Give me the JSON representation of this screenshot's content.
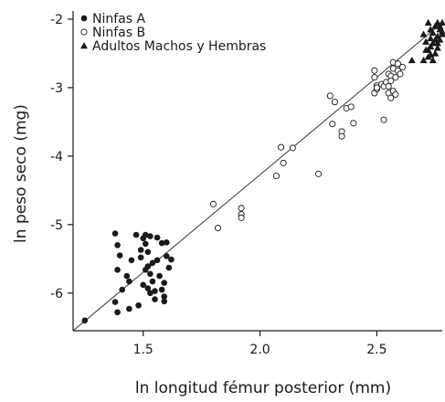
{
  "chart_data": {
    "type": "scatter",
    "title": "",
    "xlabel": "ln longitud fémur posterior (mm)",
    "ylabel": "ln peso seco (mg)",
    "xlim": [
      1.2,
      2.78
    ],
    "ylim": [
      -6.55,
      -1.88
    ],
    "xticks": [
      1.5,
      2.0,
      2.5
    ],
    "xtick_labels": [
      "1.5",
      "2.0",
      "2.5"
    ],
    "yticks": [
      -6,
      -5,
      -4,
      -3,
      -2
    ],
    "ytick_labels": [
      "-6",
      "-5",
      "-4",
      "-3",
      "-2"
    ],
    "grid": false,
    "legend_position": "top-left",
    "regression_line": {
      "x": [
        1.2,
        2.78
      ],
      "y": [
        -6.55,
        -2.05
      ]
    },
    "series": [
      {
        "name": "Ninfas A",
        "marker": "filled-circle",
        "x": [
          1.25,
          1.38,
          1.38,
          1.39,
          1.39,
          1.39,
          1.4,
          1.41,
          1.43,
          1.44,
          1.44,
          1.45,
          1.47,
          1.48,
          1.49,
          1.49,
          1.5,
          1.5,
          1.51,
          1.51,
          1.51,
          1.52,
          1.52,
          1.52,
          1.53,
          1.53,
          1.53,
          1.54,
          1.54,
          1.55,
          1.55,
          1.56,
          1.56,
          1.57,
          1.58,
          1.58,
          1.59,
          1.59,
          1.59,
          1.6,
          1.6,
          1.61,
          1.62
        ],
        "y": [
          -6.4,
          -5.13,
          -6.13,
          -5.66,
          -6.28,
          -5.3,
          -5.45,
          -5.95,
          -5.75,
          -6.23,
          -5.83,
          -5.52,
          -5.15,
          -6.18,
          -5.37,
          -5.48,
          -5.88,
          -5.2,
          -5.28,
          -5.66,
          -5.15,
          -5.4,
          -5.61,
          -5.93,
          -5.17,
          -6.0,
          -5.72,
          -5.56,
          -5.83,
          -5.97,
          -6.09,
          -5.19,
          -5.52,
          -5.75,
          -5.27,
          -5.95,
          -5.85,
          -6.05,
          -6.12,
          -5.46,
          -5.26,
          -5.63,
          -5.51
        ]
      },
      {
        "name": "Ninfas B",
        "marker": "open-circle",
        "x": [
          1.8,
          1.82,
          1.92,
          1.92,
          1.92,
          2.07,
          2.09,
          2.1,
          2.14,
          2.25,
          2.3,
          2.31,
          2.32,
          2.35,
          2.35,
          2.37,
          2.39,
          2.4,
          2.49,
          2.49,
          2.49,
          2.5,
          2.5,
          2.5,
          2.52,
          2.53,
          2.53,
          2.54,
          2.55,
          2.55,
          2.55,
          2.56,
          2.56,
          2.56,
          2.57,
          2.57,
          2.57,
          2.58,
          2.58,
          2.59,
          2.59,
          2.6,
          2.61
        ],
        "y": [
          -4.7,
          -5.05,
          -4.76,
          -4.85,
          -4.9,
          -4.29,
          -3.87,
          -4.1,
          -3.88,
          -4.26,
          -3.12,
          -3.53,
          -3.21,
          -3.64,
          -3.71,
          -3.3,
          -3.28,
          -3.52,
          -2.75,
          -2.85,
          -3.08,
          -2.97,
          -3.02,
          -3.0,
          -2.95,
          -3.47,
          -2.98,
          -2.92,
          -2.8,
          -2.98,
          -3.08,
          -2.83,
          -2.9,
          -3.15,
          -2.63,
          -3.05,
          -2.72,
          -2.85,
          -3.1,
          -2.75,
          -2.65,
          -2.8,
          -2.7
        ]
      },
      {
        "name": "Adultos Machos y Hembras",
        "marker": "filled-triangle",
        "x": [
          2.65,
          2.7,
          2.7,
          2.71,
          2.72,
          2.72,
          2.72,
          2.73,
          2.73,
          2.73,
          2.74,
          2.74,
          2.75,
          2.75,
          2.75,
          2.76,
          2.76,
          2.76,
          2.77,
          2.77,
          2.77,
          2.78,
          2.78,
          2.78,
          2.74,
          2.71,
          2.76,
          2.73
        ],
        "y": [
          -2.6,
          -2.6,
          -2.22,
          -2.33,
          -2.45,
          -2.05,
          -2.55,
          -2.28,
          -2.15,
          -2.4,
          -2.2,
          -2.35,
          -2.1,
          -2.3,
          -2.5,
          -2.05,
          -2.25,
          -2.35,
          -2.1,
          -2.15,
          -2.3,
          -2.05,
          -2.18,
          -2.22,
          -2.6,
          -2.45,
          -2.42,
          -2.52
        ]
      }
    ]
  }
}
